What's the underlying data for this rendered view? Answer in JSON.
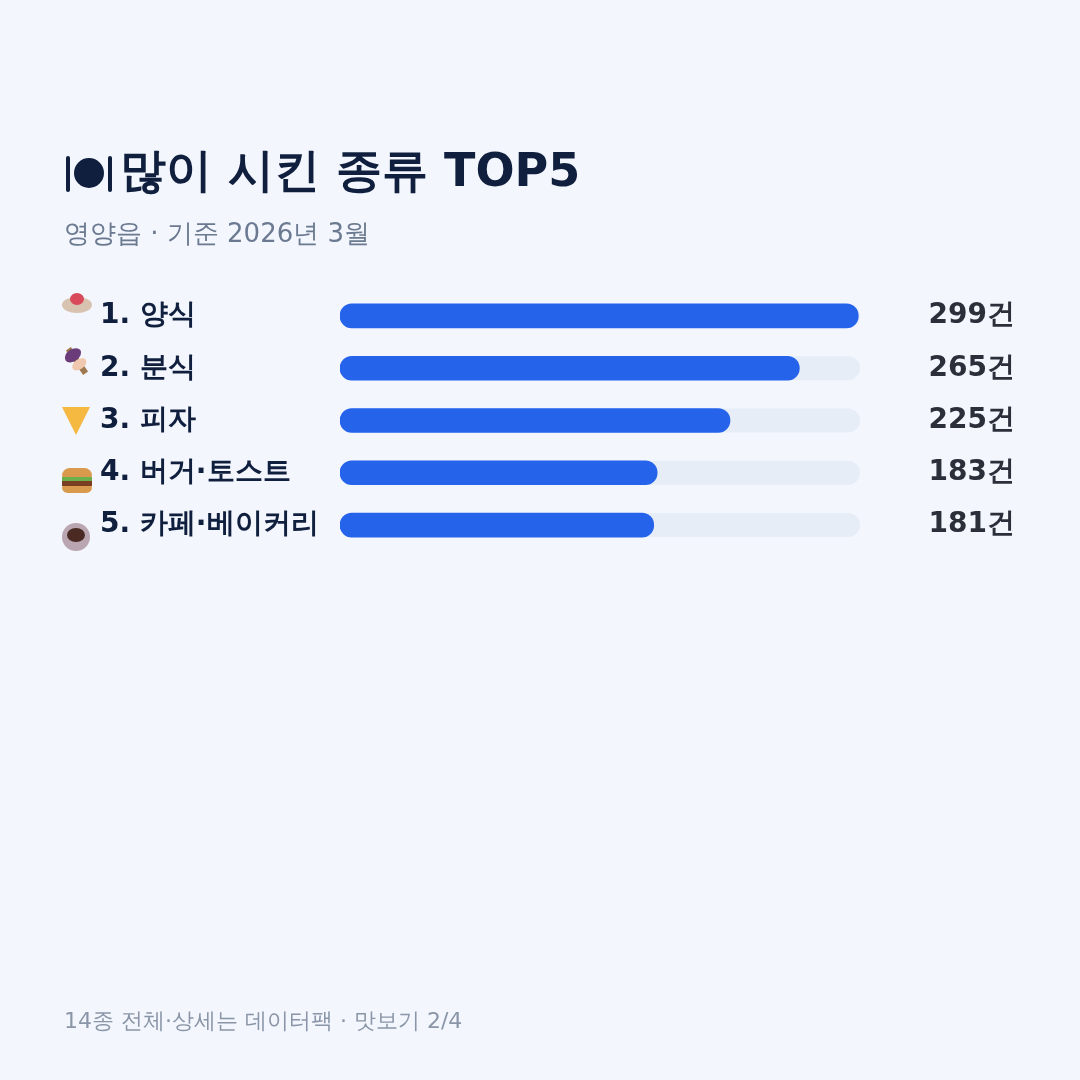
{
  "chart_data": {
    "type": "bar",
    "orientation": "horizontal",
    "title": "많이 시킨 종류 TOP5",
    "subtitle": "영양읍 · 기준 2026년 3월",
    "categories": [
      "1. 양식",
      "2. 분식",
      "3. 피자",
      "4. 버거·토스트",
      "5. 카페·베이커리"
    ],
    "values": [
      299,
      265,
      225,
      183,
      181
    ],
    "value_labels": [
      "299건",
      "265건",
      "225건",
      "183건",
      "181건"
    ],
    "color": "#2563eb",
    "grid": false,
    "legend": false,
    "annotations": [
      "14종 전체·상세는 데이터팩 · 맛보기 2/4"
    ]
  }
}
